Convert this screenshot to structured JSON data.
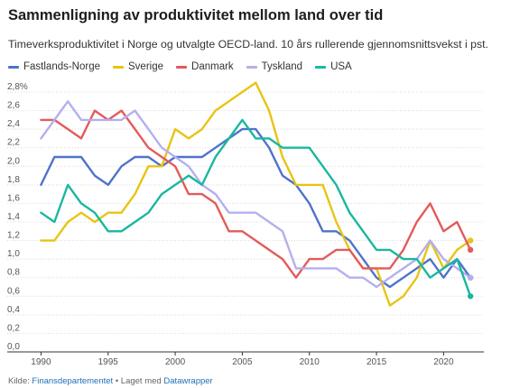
{
  "header": {
    "title": "Sammenligning av produktivitet mellom land over tid",
    "subtitle": "Timeverksproduktivitet i Norge og utvalgte OECD-land. 10 års rullerende gjennomsnittsvekst i pst."
  },
  "footer": {
    "source_prefix": "Kilde: ",
    "source_link": "Finansdepartementet",
    "separator": " • Laget med ",
    "tool_link": "Datawrapper"
  },
  "chart_data": {
    "type": "line",
    "title": "Sammenligning av produktivitet mellom land over tid",
    "subtitle": "Timeverksproduktivitet i Norge og utvalgte OECD-land. 10 års rullerende gjennomsnittsvekst i pst.",
    "xlabel": "",
    "ylabel": "",
    "xlim": [
      1989.5,
      2023
    ],
    "ylim": [
      0,
      2.8
    ],
    "y_ticks": [
      "0,0",
      "0,2",
      "0,4",
      "0,6",
      "0,8",
      "1,0",
      "1,2",
      "1,4",
      "1,6",
      "1,8",
      "2,0",
      "2,2",
      "2,4",
      "2,6",
      "2,8%"
    ],
    "x_ticks": [
      1990,
      1995,
      2000,
      2005,
      2010,
      2015,
      2020
    ],
    "grid": true,
    "legend_position": "top-left",
    "x": [
      1990,
      1991,
      1992,
      1993,
      1994,
      1995,
      1996,
      1997,
      1998,
      1999,
      2000,
      2001,
      2002,
      2003,
      2004,
      2005,
      2006,
      2007,
      2008,
      2009,
      2010,
      2011,
      2012,
      2013,
      2014,
      2015,
      2016,
      2017,
      2018,
      2019,
      2020,
      2021,
      2022
    ],
    "series": [
      {
        "name": "Fastlands-Norge",
        "color": "#4e73c9",
        "values": [
          1.8,
          2.1,
          2.1,
          2.1,
          1.9,
          1.8,
          2.0,
          2.1,
          2.1,
          2.0,
          2.1,
          2.1,
          2.1,
          2.2,
          2.3,
          2.4,
          2.4,
          2.2,
          1.9,
          1.8,
          1.6,
          1.3,
          1.3,
          1.2,
          1.0,
          0.8,
          0.7,
          0.8,
          0.9,
          1.0,
          0.8,
          1.0,
          0.8
        ]
      },
      {
        "name": "Sverige",
        "color": "#e8c413",
        "values": [
          1.2,
          1.2,
          1.4,
          1.5,
          1.4,
          1.5,
          1.5,
          1.7,
          2.0,
          2.0,
          2.4,
          2.3,
          2.4,
          2.6,
          2.7,
          2.8,
          2.9,
          2.6,
          2.1,
          1.8,
          1.8,
          1.8,
          1.4,
          1.1,
          0.9,
          0.9,
          0.5,
          0.6,
          0.8,
          1.2,
          0.9,
          1.1,
          1.2
        ]
      },
      {
        "name": "Danmark",
        "color": "#e45a5a",
        "values": [
          2.5,
          2.5,
          2.4,
          2.3,
          2.6,
          2.5,
          2.6,
          2.4,
          2.2,
          2.1,
          2.0,
          1.7,
          1.7,
          1.6,
          1.3,
          1.3,
          1.2,
          1.1,
          1.0,
          0.8,
          1.0,
          1.0,
          1.1,
          1.1,
          0.9,
          0.9,
          0.9,
          1.1,
          1.4,
          1.6,
          1.3,
          1.4,
          1.1
        ]
      },
      {
        "name": "Tyskland",
        "color": "#b3b0ee",
        "values": [
          2.3,
          2.5,
          2.7,
          2.5,
          2.5,
          2.5,
          2.5,
          2.6,
          2.4,
          2.2,
          2.1,
          2.0,
          1.8,
          1.7,
          1.5,
          1.5,
          1.5,
          1.4,
          1.3,
          0.9,
          0.9,
          0.9,
          0.9,
          0.8,
          0.8,
          0.7,
          0.8,
          0.9,
          1.0,
          1.2,
          1.0,
          0.9,
          0.8
        ]
      },
      {
        "name": "USA",
        "color": "#19b7a0",
        "values": [
          1.5,
          1.4,
          1.8,
          1.6,
          1.5,
          1.3,
          1.3,
          1.4,
          1.5,
          1.7,
          1.8,
          1.9,
          1.8,
          2.1,
          2.3,
          2.5,
          2.3,
          2.3,
          2.2,
          2.2,
          2.2,
          2.0,
          1.8,
          1.5,
          1.3,
          1.1,
          1.1,
          1.0,
          1.0,
          0.8,
          0.9,
          1.0,
          0.6
        ]
      }
    ]
  }
}
